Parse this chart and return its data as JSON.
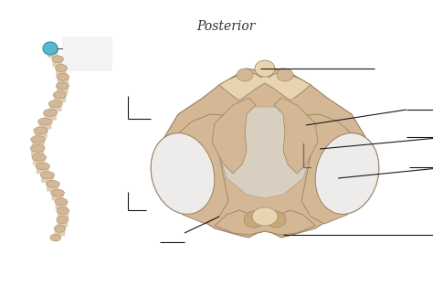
{
  "background_color": "#ffffff",
  "title_text": "Posterior",
  "title_fontstyle": "italic",
  "title_fontsize": 10,
  "title_color": "#333333",
  "bone_color": "#d4b896",
  "bone_mid": "#c8a87a",
  "bone_light": "#e8d5b0",
  "bone_dark": "#b09060",
  "foramen_color": "#c8bfb0",
  "cartilage_color": "#eeecea",
  "cartilage_edge": "#aaaaaa"
}
